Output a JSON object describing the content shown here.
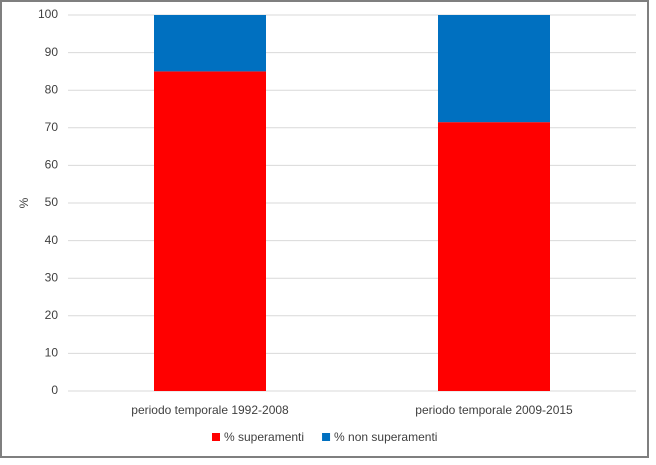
{
  "chart_data": {
    "type": "stacked_bar",
    "y_label": "%",
    "categories": [
      "periodo temporale 1992-2008",
      "periodo temporale 2009-2015"
    ],
    "series": [
      {
        "name": "% superamenti",
        "color": "#ff0000",
        "values": [
          85,
          71.5
        ]
      },
      {
        "name": "% non superamenti",
        "color": "#0070c0",
        "values": [
          15,
          28.5
        ]
      }
    ],
    "ylim": [
      0,
      100
    ],
    "yticks": [
      0,
      10,
      20,
      30,
      40,
      50,
      60,
      70,
      80,
      90,
      100
    ],
    "grid": true
  }
}
